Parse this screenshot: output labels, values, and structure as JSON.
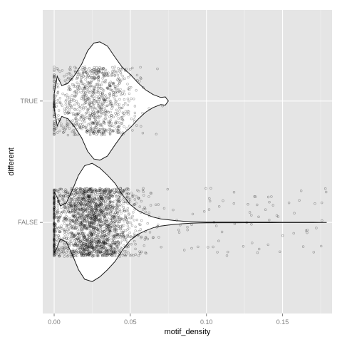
{
  "chart_data": {
    "type": "violin",
    "xlabel": "motif_density",
    "ylabel": "different",
    "xlim": [
      -0.0075,
      0.1825
    ],
    "x_ticks": [
      {
        "value": 0.0,
        "label": "0.00"
      },
      {
        "value": 0.05,
        "label": "0.05"
      },
      {
        "value": 0.1,
        "label": "0.10"
      },
      {
        "value": 0.15,
        "label": "0.15"
      }
    ],
    "categories": [
      "FALSE",
      "TRUE"
    ],
    "grid": true,
    "colors": {
      "panel": "#e5e5e5",
      "grid_major": "#ffffff",
      "violin_fill": "#ffffff",
      "violin_stroke": "#1a1a1a",
      "points": "#000000"
    },
    "groups": [
      {
        "category": "TRUE",
        "x_range": [
          0.0,
          0.075
        ],
        "n_points": 900,
        "point_x_min": 0.0,
        "point_x_max": 0.072,
        "density": [
          [
            0.0,
            0.12
          ],
          [
            0.002,
            0.42
          ],
          [
            0.005,
            0.26
          ],
          [
            0.009,
            0.3
          ],
          [
            0.013,
            0.42
          ],
          [
            0.018,
            0.62
          ],
          [
            0.022,
            0.85
          ],
          [
            0.026,
            0.98
          ],
          [
            0.03,
            1.0
          ],
          [
            0.035,
            0.93
          ],
          [
            0.04,
            0.74
          ],
          [
            0.045,
            0.56
          ],
          [
            0.05,
            0.45
          ],
          [
            0.055,
            0.31
          ],
          [
            0.06,
            0.19
          ],
          [
            0.065,
            0.11
          ],
          [
            0.07,
            0.06
          ],
          [
            0.073,
            0.07
          ],
          [
            0.075,
            0.0
          ]
        ]
      },
      {
        "category": "FALSE",
        "x_range": [
          0.0,
          0.179
        ],
        "n_points": 2200,
        "point_x_min": 0.0,
        "point_x_max": 0.179,
        "density": [
          [
            0.0,
            0.52
          ],
          [
            0.002,
            0.42
          ],
          [
            0.004,
            0.28
          ],
          [
            0.008,
            0.33
          ],
          [
            0.012,
            0.55
          ],
          [
            0.016,
            0.8
          ],
          [
            0.02,
            0.96
          ],
          [
            0.025,
            1.0
          ],
          [
            0.03,
            0.92
          ],
          [
            0.035,
            0.8
          ],
          [
            0.04,
            0.66
          ],
          [
            0.045,
            0.46
          ],
          [
            0.05,
            0.3
          ],
          [
            0.055,
            0.2
          ],
          [
            0.06,
            0.14
          ],
          [
            0.065,
            0.09
          ],
          [
            0.07,
            0.06
          ],
          [
            0.075,
            0.045
          ],
          [
            0.08,
            0.03
          ],
          [
            0.085,
            0.02
          ],
          [
            0.09,
            0.013
          ],
          [
            0.095,
            0.009
          ],
          [
            0.1,
            0.006
          ],
          [
            0.11,
            0.005
          ],
          [
            0.12,
            0.005
          ],
          [
            0.13,
            0.004
          ],
          [
            0.14,
            0.004
          ],
          [
            0.15,
            0.003
          ],
          [
            0.16,
            0.003
          ],
          [
            0.17,
            0.002
          ],
          [
            0.179,
            0.0
          ]
        ]
      }
    ]
  }
}
